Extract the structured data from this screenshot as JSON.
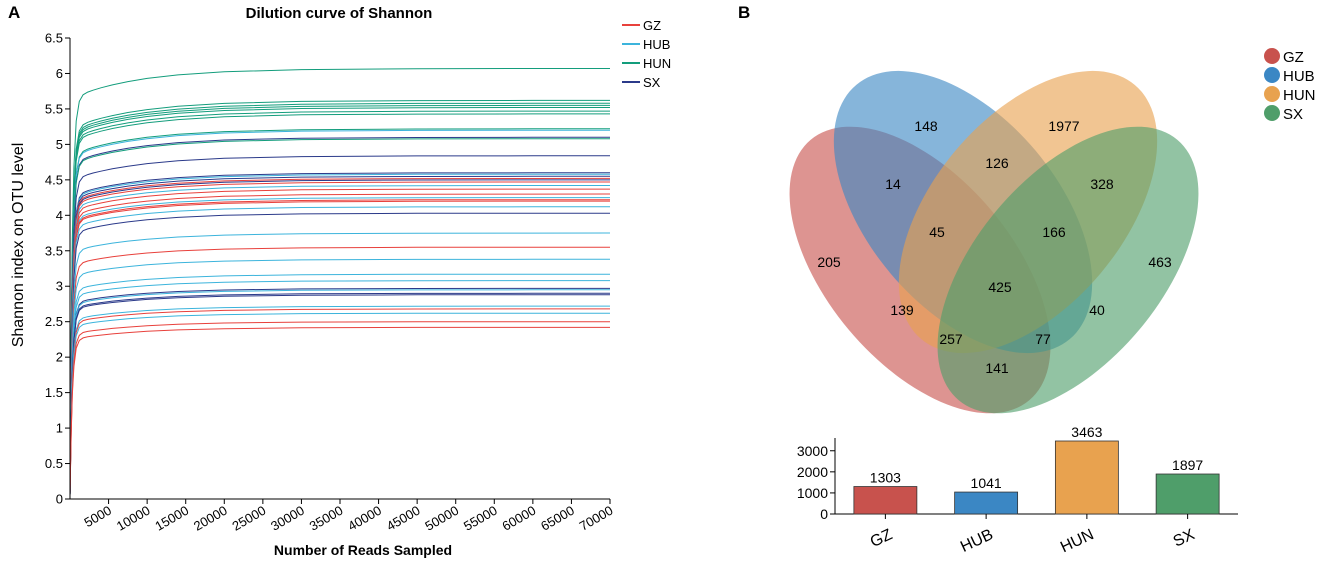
{
  "panel_a_label": "A",
  "panel_b_label": "B",
  "chart_data": [
    {
      "type": "line",
      "title": "Dilution curve of Shannon",
      "xlabel": "Number of Reads Sampled",
      "ylabel": "Shannon index on OTU level",
      "xlim": [
        0,
        70000
      ],
      "ylim": [
        0,
        6.5
      ],
      "x_ticks": [
        "5000",
        "10000",
        "15000",
        "20000",
        "25000",
        "30000",
        "35000",
        "40000",
        "45000",
        "50000",
        "55000",
        "60000",
        "65000",
        "70000"
      ],
      "y_ticks": [
        "0",
        "0.5",
        "1",
        "1.5",
        "2",
        "2.5",
        "3",
        "3.5",
        "4",
        "4.5",
        "5",
        "5.5",
        "6",
        "6.5"
      ],
      "x_tick_values": [
        5000,
        10000,
        15000,
        20000,
        25000,
        30000,
        35000,
        40000,
        45000,
        50000,
        55000,
        60000,
        65000,
        70000
      ],
      "y_tick_values": [
        0,
        0.5,
        1,
        1.5,
        2,
        2.5,
        3,
        3.5,
        4,
        4.5,
        5,
        5.5,
        6,
        6.5
      ],
      "x_max_sampled": 70000,
      "legend": [
        {
          "name": "GZ",
          "color": "#e8413c"
        },
        {
          "name": "HUB",
          "color": "#3cb4dc"
        },
        {
          "name": "HUN",
          "color": "#139d7c"
        },
        {
          "name": "SX",
          "color": "#2b3a8a"
        }
      ],
      "series": [
        {
          "name": "HUN",
          "plateau": 6.07
        },
        {
          "name": "HUN",
          "plateau": 5.62
        },
        {
          "name": "HUN",
          "plateau": 5.58
        },
        {
          "name": "HUN",
          "plateau": 5.55
        },
        {
          "name": "HUN",
          "plateau": 5.52
        },
        {
          "name": "HUN",
          "plateau": 5.47
        },
        {
          "name": "HUN",
          "plateau": 5.43
        },
        {
          "name": "HUN",
          "plateau": 5.22
        },
        {
          "name": "HUB",
          "plateau": 5.2
        },
        {
          "name": "SX",
          "plateau": 5.1
        },
        {
          "name": "HUN",
          "plateau": 5.08
        },
        {
          "name": "SX",
          "plateau": 4.84
        },
        {
          "name": "SX",
          "plateau": 4.6
        },
        {
          "name": "HUB",
          "plateau": 4.58
        },
        {
          "name": "SX",
          "plateau": 4.55
        },
        {
          "name": "GZ",
          "plateau": 4.52
        },
        {
          "name": "SX",
          "plateau": 4.5
        },
        {
          "name": "GZ",
          "plateau": 4.47
        },
        {
          "name": "HUB",
          "plateau": 4.42
        },
        {
          "name": "GZ",
          "plateau": 4.37
        },
        {
          "name": "GZ",
          "plateau": 4.3
        },
        {
          "name": "HUB",
          "plateau": 4.25
        },
        {
          "name": "GZ",
          "plateau": 4.22
        },
        {
          "name": "GZ",
          "plateau": 4.2
        },
        {
          "name": "HUB",
          "plateau": 4.12
        },
        {
          "name": "SX",
          "plateau": 4.03
        },
        {
          "name": "HUB",
          "plateau": 3.75
        },
        {
          "name": "GZ",
          "plateau": 3.55
        },
        {
          "name": "HUB",
          "plateau": 3.38
        },
        {
          "name": "HUB",
          "plateau": 3.17
        },
        {
          "name": "HUB",
          "plateau": 3.08
        },
        {
          "name": "SX",
          "plateau": 2.97
        },
        {
          "name": "HUB",
          "plateau": 2.95
        },
        {
          "name": "SX",
          "plateau": 2.9
        },
        {
          "name": "SX",
          "plateau": 2.88
        },
        {
          "name": "HUB",
          "plateau": 2.72
        },
        {
          "name": "GZ",
          "plateau": 2.68
        },
        {
          "name": "HUB",
          "plateau": 2.62
        },
        {
          "name": "GZ",
          "plateau": 2.5
        },
        {
          "name": "GZ",
          "plateau": 2.42
        }
      ]
    },
    {
      "type": "venn",
      "sets": [
        {
          "name": "GZ",
          "color": "#c8524d"
        },
        {
          "name": "HUB",
          "color": "#3b87c4"
        },
        {
          "name": "HUN",
          "color": "#e8a24f"
        },
        {
          "name": "SX",
          "color": "#4f9e6a"
        }
      ],
      "regions": [
        {
          "sets": [
            "HUB"
          ],
          "value": "148"
        },
        {
          "sets": [
            "HUN"
          ],
          "value": "1977"
        },
        {
          "sets": [
            "HUB",
            "HUN"
          ],
          "value": "126"
        },
        {
          "sets": [
            "GZ",
            "HUB"
          ],
          "value": "14"
        },
        {
          "sets": [
            "HUN",
            "SX"
          ],
          "value": "328"
        },
        {
          "sets": [
            "GZ",
            "HUB",
            "HUN"
          ],
          "value": "45"
        },
        {
          "sets": [
            "HUB",
            "HUN",
            "SX"
          ],
          "value": "166"
        },
        {
          "sets": [
            "GZ"
          ],
          "value": "205"
        },
        {
          "sets": [
            "SX"
          ],
          "value": "463"
        },
        {
          "sets": [
            "GZ",
            "HUB",
            "HUN",
            "SX"
          ],
          "value": "425"
        },
        {
          "sets": [
            "GZ",
            "HUN"
          ],
          "value": "139"
        },
        {
          "sets": [
            "HUB",
            "SX"
          ],
          "value": "40"
        },
        {
          "sets": [
            "GZ",
            "HUN",
            "SX"
          ],
          "value": "257"
        },
        {
          "sets": [
            "GZ",
            "HUB",
            "SX"
          ],
          "value": "77"
        },
        {
          "sets": [
            "GZ",
            "SX"
          ],
          "value": "141"
        }
      ]
    },
    {
      "type": "bar",
      "categories": [
        "GZ",
        "HUB",
        "HUN",
        "SX"
      ],
      "values": [
        1303,
        1041,
        3463,
        1897
      ],
      "value_labels": [
        "1303",
        "1041",
        "3463",
        "1897"
      ],
      "colors": [
        "#c8524d",
        "#3b87c4",
        "#e8a24f",
        "#4f9e6a"
      ],
      "ylim": [
        0,
        3463
      ],
      "y_ticks": [
        "0",
        "1000",
        "2000",
        "3000"
      ],
      "y_tick_values": [
        0,
        1000,
        2000,
        3000
      ]
    }
  ]
}
